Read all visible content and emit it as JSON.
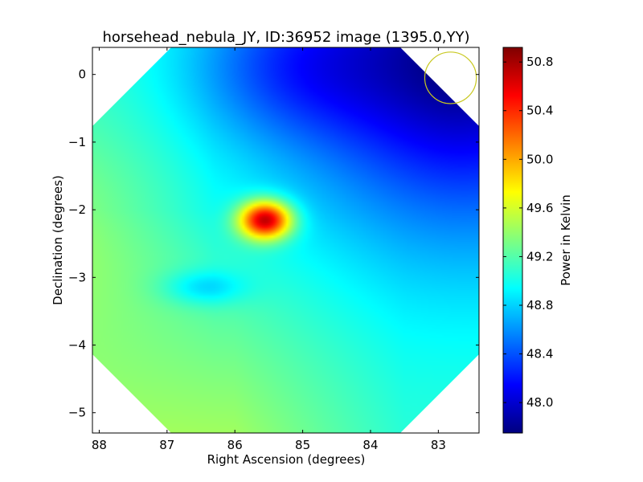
{
  "chart_data": {
    "type": "heatmap",
    "title": "horsehead_nebula_JY, ID:36952 image (1395.0,YY)",
    "xlabel": "Right Ascension (degrees)",
    "ylabel": "Declination (degrees)",
    "xlim": [
      88.1,
      82.4
    ],
    "ylim": [
      -5.3,
      0.4
    ],
    "xticks": [
      88,
      87,
      86,
      85,
      84,
      83
    ],
    "xtick_labels": [
      "88",
      "87",
      "86",
      "85",
      "84",
      "83"
    ],
    "yticks": [
      0,
      -1,
      -2,
      -3,
      -4,
      -5
    ],
    "ytick_labels": [
      "0",
      "−1",
      "−2",
      "−3",
      "−4",
      "−5"
    ],
    "colormap": "jet",
    "colorbar": {
      "label": "Power in Kelvin",
      "range": [
        47.75,
        50.92
      ],
      "ticks": [
        48.0,
        48.4,
        48.8,
        49.2,
        49.6,
        50.0,
        50.4,
        50.8
      ],
      "tick_labels": [
        "48.0",
        "48.4",
        "48.8",
        "49.2",
        "49.6",
        "50.0",
        "50.4",
        "50.8"
      ]
    },
    "field_model": {
      "background": 49.1,
      "features": [
        {
          "name": "hotspot",
          "ra": 85.55,
          "dec": -2.15,
          "peak": 50.9
        },
        {
          "name": "cool-blob",
          "ra": 86.45,
          "dec": -3.15,
          "peak": 48.75
        },
        {
          "name": "cold-corner",
          "ra": 82.6,
          "dec": 0.2,
          "peak": 47.75
        }
      ]
    },
    "beam": {
      "ra": 82.82,
      "dec": -0.05,
      "radius_deg": 0.38,
      "color": "#c8c820"
    },
    "grid": false,
    "legend": "none"
  }
}
